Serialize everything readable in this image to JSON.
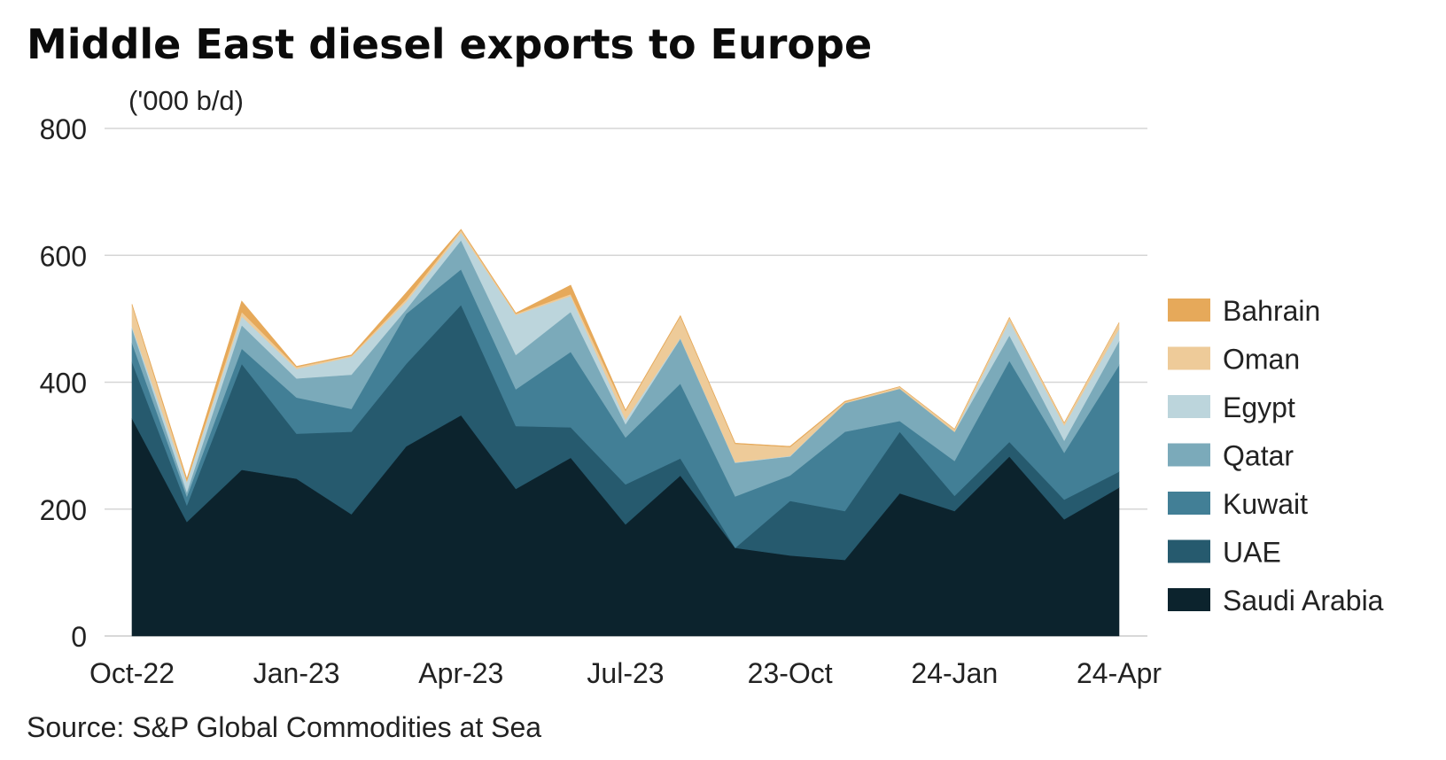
{
  "chart_data": {
    "type": "area",
    "stacked": true,
    "title": "Middle East diesel exports to Europe",
    "ylabel": "('000 b/d)",
    "xlabel": "",
    "ylim": [
      0,
      800
    ],
    "yticks": [
      "0",
      "200",
      "400",
      "600",
      "800"
    ],
    "ytick_values": [
      0,
      200,
      400,
      600,
      800
    ],
    "grid": true,
    "legend_position": "right",
    "x": [
      "Oct-22",
      "Nov-22",
      "Dec-22",
      "Jan-23",
      "Feb-23",
      "Mar-23",
      "Apr-23",
      "May-23",
      "Jun-23",
      "Jul-23",
      "Aug-23",
      "Sep-23",
      "Oct-23",
      "Nov-23",
      "Dec-23",
      "Jan-24",
      "Feb-24",
      "Mar-24",
      "Apr-24"
    ],
    "xtick_labels": [
      {
        "label": "Oct-22",
        "index": 0
      },
      {
        "label": "Jan-23",
        "index": 3
      },
      {
        "label": "Apr-23",
        "index": 6
      },
      {
        "label": "Jul-23",
        "index": 9
      },
      {
        "label": "23-Oct",
        "index": 12
      },
      {
        "label": "24-Jan",
        "index": 15
      },
      {
        "label": "24-Apr",
        "index": 18
      }
    ],
    "series": [
      {
        "name": "Saudi Arabia",
        "color": "#0c232d",
        "values": [
          343,
          180,
          262,
          248,
          192,
          299,
          348,
          232,
          281,
          176,
          253,
          139,
          127,
          120,
          225,
          197,
          283,
          184,
          234
        ]
      },
      {
        "name": "UAE",
        "color": "#265a6e",
        "values": [
          89,
          26,
          167,
          71,
          130,
          130,
          174,
          99,
          48,
          63,
          27,
          0,
          86,
          77,
          97,
          24,
          23,
          31,
          25
        ]
      },
      {
        "name": "Kuwait",
        "color": "#427f96",
        "values": [
          30,
          14,
          24,
          57,
          36,
          79,
          56,
          58,
          119,
          74,
          118,
          81,
          40,
          125,
          17,
          55,
          128,
          74,
          168
        ]
      },
      {
        "name": "Qatar",
        "color": "#7baaba",
        "values": [
          23,
          7,
          37,
          30,
          54,
          7,
          46,
          54,
          63,
          21,
          71,
          53,
          30,
          45,
          51,
          46,
          40,
          19,
          38
        ]
      },
      {
        "name": "Egypt",
        "color": "#bcd5dc",
        "values": [
          3,
          16,
          14,
          15,
          28,
          12,
          12,
          63,
          25,
          7,
          1,
          1,
          1,
          0,
          0,
          0,
          23,
          24,
          19
        ]
      },
      {
        "name": "Oman",
        "color": "#eecb99",
        "values": [
          34,
          2,
          7,
          3,
          2,
          4,
          4,
          2,
          3,
          14,
          34,
          29,
          14,
          2,
          3,
          4,
          5,
          4,
          10
        ]
      },
      {
        "name": "Bahrain",
        "color": "#e6a95a",
        "values": [
          1,
          3,
          17,
          1,
          1,
          10,
          1,
          1,
          14,
          1,
          1,
          1,
          1,
          1,
          0,
          0,
          0,
          0,
          0
        ]
      }
    ],
    "legend_order": [
      "Bahrain",
      "Oman",
      "Egypt",
      "Qatar",
      "Kuwait",
      "UAE",
      "Saudi Arabia"
    ]
  },
  "source": "Source: S&P Global Commodities at Sea",
  "colors": {
    "gridline": "#d6d6d6",
    "axis": "#cccccc"
  }
}
